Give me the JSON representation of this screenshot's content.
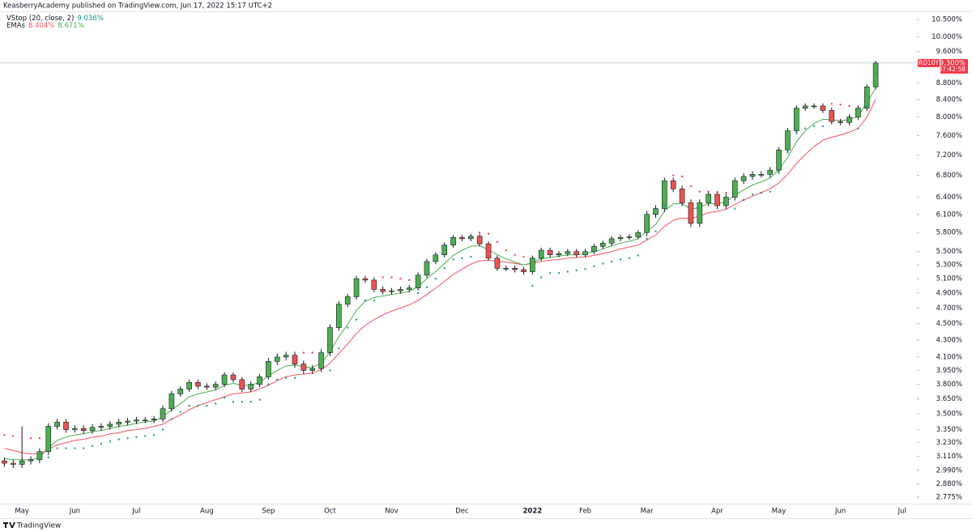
{
  "chart_data": {
    "type": "candlestick",
    "header": "KeasberryAcademy published on TradingView.com, Jun 17, 2022 15:17 UTC+2",
    "symbol": "RO10Y",
    "last_price": 9.3,
    "last_price_label": "9.300%",
    "countdown": "07:42:58",
    "brand": "TradingView",
    "log_scale": true,
    "grid": false,
    "up_color": "#4caf50",
    "down_color": "#ef5350",
    "categories": [
      null,
      null,
      "May",
      null,
      null,
      null,
      null,
      null,
      "Jun",
      null,
      null,
      null,
      null,
      null,
      null,
      "Jul",
      null,
      null,
      null,
      null,
      null,
      null,
      null,
      "Aug",
      null,
      null,
      null,
      null,
      null,
      null,
      "Sep",
      null,
      null,
      null,
      null,
      null,
      null,
      "Oct",
      null,
      null,
      null,
      null,
      null,
      null,
      "Nov",
      null,
      null,
      null,
      null,
      null,
      null,
      null,
      "Dec",
      null,
      null,
      null,
      null,
      null,
      null,
      null,
      "2022",
      null,
      null,
      null,
      null,
      null,
      "Feb",
      null,
      null,
      null,
      null,
      null,
      null,
      "Mar",
      null,
      null,
      null,
      null,
      null,
      null,
      null,
      "Apr",
      null,
      null,
      null,
      null,
      null,
      null,
      "May",
      null,
      null,
      null,
      null,
      null,
      null,
      "Jun",
      null,
      null,
      null,
      null,
      null,
      null,
      "Jul",
      null
    ],
    "open": [
      3.07,
      3.05,
      3.04,
      3.07,
      3.08,
      3.15,
      3.38,
      3.42,
      3.35,
      3.36,
      3.34,
      3.37,
      3.38,
      3.4,
      3.42,
      3.43,
      3.44,
      3.44,
      3.45,
      3.55,
      3.7,
      3.75,
      3.82,
      3.78,
      3.77,
      3.8,
      3.9,
      3.85,
      3.75,
      3.8,
      3.88,
      4.05,
      4.1,
      4.12,
      4.02,
      3.95,
      3.97,
      4.15,
      4.45,
      4.75,
      4.85,
      5.1,
      5.08,
      4.95,
      4.92,
      4.93,
      4.95,
      4.97,
      5.15,
      5.35,
      5.45,
      5.6,
      5.72,
      5.7,
      5.74,
      5.62,
      5.4,
      5.25,
      5.25,
      5.23,
      5.2,
      5.4,
      5.52,
      5.45,
      5.47,
      5.5,
      5.45,
      5.5,
      5.58,
      5.63,
      5.7,
      5.72,
      5.73,
      5.8,
      6.1,
      6.2,
      6.7,
      6.55,
      6.3,
      5.95,
      6.3,
      6.45,
      6.25,
      6.4,
      6.7,
      6.78,
      6.82,
      6.82,
      6.9,
      7.3,
      7.7,
      8.2,
      8.25,
      8.25,
      8.15,
      7.9,
      7.88,
      8.0,
      8.2,
      8.7,
      null,
      null,
      null,
      null
    ],
    "high": [
      3.1,
      3.08,
      3.38,
      3.11,
      3.18,
      3.41,
      3.45,
      3.45,
      3.39,
      3.39,
      3.4,
      3.41,
      3.43,
      3.45,
      3.46,
      3.47,
      3.47,
      3.48,
      3.58,
      3.73,
      3.78,
      3.85,
      3.85,
      3.81,
      3.83,
      3.93,
      3.93,
      3.88,
      3.83,
      3.91,
      4.09,
      4.14,
      4.16,
      4.16,
      4.06,
      4.01,
      4.19,
      4.49,
      4.79,
      4.89,
      5.14,
      5.14,
      5.12,
      4.99,
      4.97,
      4.99,
      5.01,
      5.19,
      5.39,
      5.49,
      5.64,
      5.76,
      5.76,
      5.78,
      5.78,
      5.66,
      5.44,
      5.29,
      5.29,
      5.27,
      5.44,
      5.56,
      5.56,
      5.51,
      5.54,
      5.54,
      5.54,
      5.62,
      5.67,
      5.74,
      5.76,
      5.77,
      5.84,
      6.16,
      6.26,
      6.76,
      6.76,
      6.61,
      6.36,
      6.36,
      6.51,
      6.51,
      6.46,
      6.76,
      6.84,
      6.88,
      6.88,
      6.96,
      7.36,
      7.76,
      8.26,
      8.31,
      8.31,
      8.31,
      8.21,
      7.96,
      8.06,
      8.26,
      8.76,
      9.36,
      null,
      null,
      null,
      null
    ],
    "low": [
      3.02,
      3.01,
      3.01,
      3.04,
      3.05,
      3.12,
      3.35,
      3.32,
      3.32,
      3.31,
      3.31,
      3.34,
      3.35,
      3.37,
      3.39,
      3.4,
      3.41,
      3.41,
      3.42,
      3.52,
      3.67,
      3.72,
      3.75,
      3.74,
      3.74,
      3.77,
      3.82,
      3.72,
      3.72,
      3.77,
      3.85,
      4.01,
      4.06,
      3.98,
      3.91,
      3.91,
      3.93,
      4.11,
      4.41,
      4.71,
      4.81,
      5.04,
      4.91,
      4.88,
      4.88,
      4.89,
      4.91,
      4.93,
      5.11,
      5.31,
      5.41,
      5.56,
      5.66,
      5.66,
      5.58,
      5.36,
      5.21,
      5.21,
      5.19,
      5.16,
      5.16,
      5.36,
      5.41,
      5.41,
      5.43,
      5.41,
      5.41,
      5.46,
      5.54,
      5.59,
      5.66,
      5.68,
      5.69,
      5.74,
      6.04,
      6.14,
      6.49,
      6.24,
      5.89,
      5.89,
      6.24,
      6.19,
      6.19,
      6.34,
      6.64,
      6.72,
      6.76,
      6.76,
      6.84,
      7.24,
      7.64,
      8.14,
      8.19,
      8.09,
      7.84,
      7.82,
      7.82,
      7.94,
      8.14,
      8.64,
      null,
      null,
      null,
      null
    ],
    "close": [
      3.05,
      3.04,
      3.07,
      3.08,
      3.15,
      3.38,
      3.42,
      3.35,
      3.36,
      3.34,
      3.37,
      3.38,
      3.4,
      3.42,
      3.43,
      3.44,
      3.44,
      3.45,
      3.55,
      3.7,
      3.75,
      3.82,
      3.78,
      3.77,
      3.8,
      3.9,
      3.85,
      3.75,
      3.8,
      3.88,
      4.05,
      4.1,
      4.12,
      4.02,
      3.95,
      3.97,
      4.15,
      4.45,
      4.75,
      4.85,
      5.1,
      5.08,
      4.95,
      4.92,
      4.93,
      4.95,
      4.97,
      5.15,
      5.35,
      5.45,
      5.6,
      5.72,
      5.7,
      5.74,
      5.62,
      5.4,
      5.25,
      5.25,
      5.23,
      5.2,
      5.4,
      5.52,
      5.45,
      5.47,
      5.5,
      5.45,
      5.5,
      5.58,
      5.63,
      5.7,
      5.72,
      5.73,
      5.8,
      6.1,
      6.2,
      6.7,
      6.55,
      6.3,
      5.95,
      6.3,
      6.45,
      6.25,
      6.4,
      6.7,
      6.78,
      6.82,
      6.82,
      6.9,
      7.3,
      7.7,
      8.2,
      8.25,
      8.25,
      8.15,
      7.9,
      7.88,
      8.0,
      8.2,
      8.7,
      9.3,
      null,
      null,
      null,
      null
    ],
    "series": [
      {
        "name": "VStop (20, close, 2)",
        "legend_value": "9.036%",
        "color": "#089981",
        "down_color": "#f23645",
        "values": [
          3.3,
          3.29,
          3.28,
          3.27,
          3.27,
          3.1,
          3.18,
          3.18,
          3.18,
          3.18,
          3.2,
          3.22,
          3.24,
          3.26,
          3.27,
          3.28,
          3.29,
          3.3,
          3.35,
          3.45,
          3.52,
          3.58,
          3.58,
          3.58,
          3.6,
          3.66,
          3.62,
          3.62,
          3.62,
          3.64,
          3.8,
          3.85,
          3.87,
          3.87,
          4.15,
          4.15,
          4.15,
          3.95,
          4.2,
          4.45,
          4.55,
          4.8,
          4.8,
          5.12,
          5.12,
          5.1,
          5.08,
          4.9,
          4.98,
          5.1,
          5.25,
          5.38,
          5.4,
          5.42,
          5.8,
          5.78,
          5.65,
          5.52,
          5.45,
          5.42,
          5.0,
          5.12,
          5.18,
          5.18,
          5.2,
          5.22,
          5.24,
          5.28,
          5.32,
          5.35,
          5.38,
          5.4,
          5.44,
          5.7,
          5.82,
          6.25,
          6.8,
          6.78,
          6.6,
          6.5,
          6.5,
          6.48,
          6.48,
          6.2,
          6.35,
          6.45,
          6.48,
          6.5,
          6.85,
          7.25,
          7.65,
          7.75,
          7.8,
          7.8,
          8.3,
          8.28,
          8.25,
          7.75,
          8.25,
          9.036,
          null,
          null,
          null,
          null
        ]
      },
      {
        "name": "EMAs",
        "legend_value": "8.404%",
        "color": "#f7525f",
        "values": [
          3.18,
          3.16,
          3.14,
          3.13,
          3.13,
          3.17,
          3.21,
          3.23,
          3.25,
          3.26,
          3.28,
          3.29,
          3.31,
          3.32,
          3.34,
          3.35,
          3.36,
          3.38,
          3.4,
          3.45,
          3.49,
          3.54,
          3.58,
          3.61,
          3.64,
          3.67,
          3.7,
          3.71,
          3.72,
          3.75,
          3.79,
          3.84,
          3.88,
          3.9,
          3.91,
          3.92,
          3.96,
          4.03,
          4.14,
          4.25,
          4.38,
          4.48,
          4.55,
          4.61,
          4.66,
          4.7,
          4.74,
          4.8,
          4.88,
          4.97,
          5.06,
          5.16,
          5.24,
          5.31,
          5.36,
          5.37,
          5.35,
          5.34,
          5.32,
          5.3,
          5.32,
          5.35,
          5.37,
          5.38,
          5.4,
          5.41,
          5.42,
          5.44,
          5.47,
          5.5,
          5.54,
          5.57,
          5.6,
          5.68,
          5.76,
          5.9,
          6.0,
          6.04,
          6.03,
          6.07,
          6.13,
          6.15,
          6.19,
          6.27,
          6.35,
          6.42,
          6.48,
          6.55,
          6.66,
          6.82,
          7.03,
          7.21,
          7.37,
          7.5,
          7.56,
          7.61,
          7.67,
          7.75,
          8.0,
          8.404,
          null,
          null,
          null,
          null
        ]
      },
      {
        "legend_value": "8.671%",
        "color": "#4caf50",
        "values": [
          3.09,
          3.08,
          3.08,
          3.08,
          3.1,
          3.18,
          3.25,
          3.28,
          3.3,
          3.31,
          3.33,
          3.34,
          3.36,
          3.38,
          3.39,
          3.41,
          3.42,
          3.43,
          3.47,
          3.54,
          3.6,
          3.67,
          3.7,
          3.72,
          3.74,
          3.79,
          3.81,
          3.79,
          3.79,
          3.82,
          3.89,
          3.95,
          4.0,
          4.01,
          3.99,
          3.98,
          4.03,
          4.16,
          4.34,
          4.49,
          4.67,
          4.79,
          4.84,
          4.86,
          4.88,
          4.9,
          4.92,
          4.99,
          5.1,
          5.2,
          5.32,
          5.44,
          5.52,
          5.58,
          5.59,
          5.53,
          5.45,
          5.39,
          5.34,
          5.3,
          5.33,
          5.39,
          5.41,
          5.43,
          5.45,
          5.45,
          5.47,
          5.5,
          5.54,
          5.59,
          5.63,
          5.66,
          5.7,
          5.82,
          5.93,
          6.16,
          6.28,
          6.29,
          6.19,
          6.22,
          6.29,
          6.28,
          6.32,
          6.43,
          6.53,
          6.62,
          6.68,
          6.75,
          6.91,
          7.15,
          7.47,
          7.7,
          7.86,
          7.95,
          7.94,
          7.92,
          7.94,
          8.02,
          8.33,
          8.671,
          null,
          null,
          null,
          null
        ]
      }
    ],
    "ylim": [
      2.725,
      10.74
    ],
    "yticks": [
      {
        "value": 2.775,
        "label": "2.775%"
      },
      {
        "value": 2.88,
        "label": "2.880%"
      },
      {
        "value": 2.99,
        "label": "2.990%"
      },
      {
        "value": 3.11,
        "label": "3.110%"
      },
      {
        "value": 3.23,
        "label": "3.230%"
      },
      {
        "value": 3.35,
        "label": "3.350%"
      },
      {
        "value": 3.5,
        "label": "3.500%"
      },
      {
        "value": 3.65,
        "label": "3.650%"
      },
      {
        "value": 3.8,
        "label": "3.800%"
      },
      {
        "value": 3.95,
        "label": "3.950%"
      },
      {
        "value": 4.1,
        "label": "4.100%"
      },
      {
        "value": 4.3,
        "label": "4.300%"
      },
      {
        "value": 4.5,
        "label": "4.500%"
      },
      {
        "value": 4.7,
        "label": "4.700%"
      },
      {
        "value": 4.9,
        "label": "4.900%"
      },
      {
        "value": 5.1,
        "label": "5.100%"
      },
      {
        "value": 5.3,
        "label": "5.300%"
      },
      {
        "value": 5.5,
        "label": "5.500%"
      },
      {
        "value": 5.8,
        "label": "5.800%"
      },
      {
        "value": 6.1,
        "label": "6.100%"
      },
      {
        "value": 6.4,
        "label": "6.400%"
      },
      {
        "value": 6.8,
        "label": "6.800%"
      },
      {
        "value": 7.2,
        "label": "7.200%"
      },
      {
        "value": 7.6,
        "label": "7.600%"
      },
      {
        "value": 8.0,
        "label": "8.000%"
      },
      {
        "value": 8.4,
        "label": "8.400%"
      },
      {
        "value": 8.8,
        "label": "8.800%"
      },
      {
        "value": 9.6,
        "label": "9.600%"
      },
      {
        "value": 10.0,
        "label": "10.000%"
      },
      {
        "value": 10.5,
        "label": "10.500%"
      }
    ]
  }
}
